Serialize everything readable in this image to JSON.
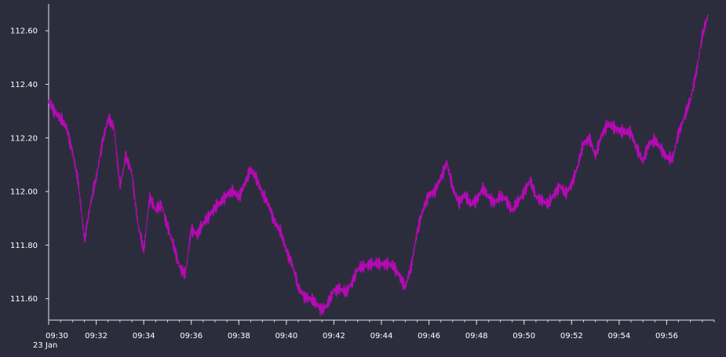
{
  "chart_data": {
    "type": "line",
    "title": "",
    "xlabel": "",
    "ylabel": "",
    "date_label": "23 Jan",
    "x_tick_labels": [
      "09:30",
      "09:32",
      "09:34",
      "09:36",
      "09:38",
      "09:40",
      "09:42",
      "09:44",
      "09:46",
      "09:48",
      "09:50",
      "09:52",
      "09:54",
      "09:56"
    ],
    "y_tick_labels": [
      "111.60",
      "111.80",
      "112.00",
      "112.20",
      "112.40",
      "112.60"
    ],
    "ylim": [
      111.52,
      112.7
    ],
    "xlim": [
      "09:30",
      "09:58"
    ],
    "grid": false,
    "colors": {
      "background": "#2c2d3c",
      "axis": "#e6e6e6",
      "line": "#b40ab4",
      "text": "#ffffff"
    },
    "series": [
      {
        "points": [
          [
            "09:30:00",
            112.34
          ],
          [
            "09:30:15",
            112.3
          ],
          [
            "09:30:30",
            112.27
          ],
          [
            "09:30:45",
            112.24
          ],
          [
            "09:31:00",
            112.15
          ],
          [
            "09:31:15",
            112.03
          ],
          [
            "09:31:30",
            111.82
          ],
          [
            "09:31:45",
            111.95
          ],
          [
            "09:32:00",
            112.05
          ],
          [
            "09:32:15",
            112.18
          ],
          [
            "09:32:30",
            112.27
          ],
          [
            "09:32:45",
            112.24
          ],
          [
            "09:33:00",
            112.02
          ],
          [
            "09:33:15",
            112.13
          ],
          [
            "09:33:30",
            112.07
          ],
          [
            "09:33:45",
            111.88
          ],
          [
            "09:34:00",
            111.78
          ],
          [
            "09:34:15",
            111.98
          ],
          [
            "09:34:30",
            111.93
          ],
          [
            "09:34:45",
            111.95
          ],
          [
            "09:35:00",
            111.87
          ],
          [
            "09:35:15",
            111.8
          ],
          [
            "09:35:30",
            111.72
          ],
          [
            "09:35:45",
            111.69
          ],
          [
            "09:36:00",
            111.86
          ],
          [
            "09:36:15",
            111.84
          ],
          [
            "09:36:30",
            111.88
          ],
          [
            "09:36:45",
            111.91
          ],
          [
            "09:37:00",
            111.94
          ],
          [
            "09:37:15",
            111.96
          ],
          [
            "09:37:30",
            111.99
          ],
          [
            "09:37:45",
            112.0
          ],
          [
            "09:38:00",
            111.98
          ],
          [
            "09:38:15",
            112.03
          ],
          [
            "09:38:30",
            112.08
          ],
          [
            "09:38:45",
            112.05
          ],
          [
            "09:39:00",
            111.99
          ],
          [
            "09:39:15",
            111.95
          ],
          [
            "09:39:30",
            111.89
          ],
          [
            "09:39:45",
            111.85
          ],
          [
            "09:40:00",
            111.78
          ],
          [
            "09:40:15",
            111.73
          ],
          [
            "09:40:30",
            111.64
          ],
          [
            "09:40:45",
            111.61
          ],
          [
            "09:41:00",
            111.6
          ],
          [
            "09:41:15",
            111.58
          ],
          [
            "09:41:30",
            111.56
          ],
          [
            "09:41:45",
            111.58
          ],
          [
            "09:42:00",
            111.63
          ],
          [
            "09:42:15",
            111.64
          ],
          [
            "09:42:30",
            111.62
          ],
          [
            "09:42:45",
            111.66
          ],
          [
            "09:43:00",
            111.71
          ],
          [
            "09:43:15",
            111.72
          ],
          [
            "09:43:30",
            111.73
          ],
          [
            "09:43:45",
            111.73
          ],
          [
            "09:44:00",
            111.73
          ],
          [
            "09:44:15",
            111.73
          ],
          [
            "09:44:30",
            111.72
          ],
          [
            "09:44:45",
            111.69
          ],
          [
            "09:45:00",
            111.64
          ],
          [
            "09:45:15",
            111.72
          ],
          [
            "09:45:30",
            111.85
          ],
          [
            "09:45:45",
            111.93
          ],
          [
            "09:46:00",
            111.99
          ],
          [
            "09:46:15",
            112.0
          ],
          [
            "09:46:30",
            112.05
          ],
          [
            "09:46:45",
            112.11
          ],
          [
            "09:47:00",
            112.01
          ],
          [
            "09:47:15",
            111.96
          ],
          [
            "09:47:30",
            111.99
          ],
          [
            "09:47:45",
            111.95
          ],
          [
            "09:48:00",
            111.97
          ],
          [
            "09:48:15",
            112.01
          ],
          [
            "09:48:30",
            111.98
          ],
          [
            "09:48:45",
            111.96
          ],
          [
            "09:49:00",
            111.98
          ],
          [
            "09:49:15",
            111.97
          ],
          [
            "09:49:30",
            111.93
          ],
          [
            "09:49:45",
            111.96
          ],
          [
            "09:50:00",
            112.0
          ],
          [
            "09:50:15",
            112.04
          ],
          [
            "09:50:30",
            111.98
          ],
          [
            "09:50:45",
            111.97
          ],
          [
            "09:51:00",
            111.95
          ],
          [
            "09:51:15",
            111.99
          ],
          [
            "09:51:30",
            112.02
          ],
          [
            "09:51:45",
            111.99
          ],
          [
            "09:52:00",
            112.03
          ],
          [
            "09:52:15",
            112.09
          ],
          [
            "09:52:30",
            112.18
          ],
          [
            "09:52:45",
            112.2
          ],
          [
            "09:53:00",
            112.13
          ],
          [
            "09:53:15",
            112.21
          ],
          [
            "09:53:30",
            112.25
          ],
          [
            "09:53:45",
            112.24
          ],
          [
            "09:54:00",
            112.23
          ],
          [
            "09:54:15",
            112.22
          ],
          [
            "09:54:30",
            112.22
          ],
          [
            "09:54:45",
            112.16
          ],
          [
            "09:55:00",
            112.11
          ],
          [
            "09:55:15",
            112.18
          ],
          [
            "09:55:30",
            112.19
          ],
          [
            "09:55:45",
            112.16
          ],
          [
            "09:56:00",
            112.13
          ],
          [
            "09:56:15",
            112.12
          ],
          [
            "09:56:30",
            112.22
          ],
          [
            "09:56:45",
            112.28
          ],
          [
            "09:57:00",
            112.34
          ],
          [
            "09:57:15",
            112.45
          ],
          [
            "09:57:30",
            112.58
          ],
          [
            "09:57:45",
            112.66
          ]
        ]
      }
    ]
  }
}
